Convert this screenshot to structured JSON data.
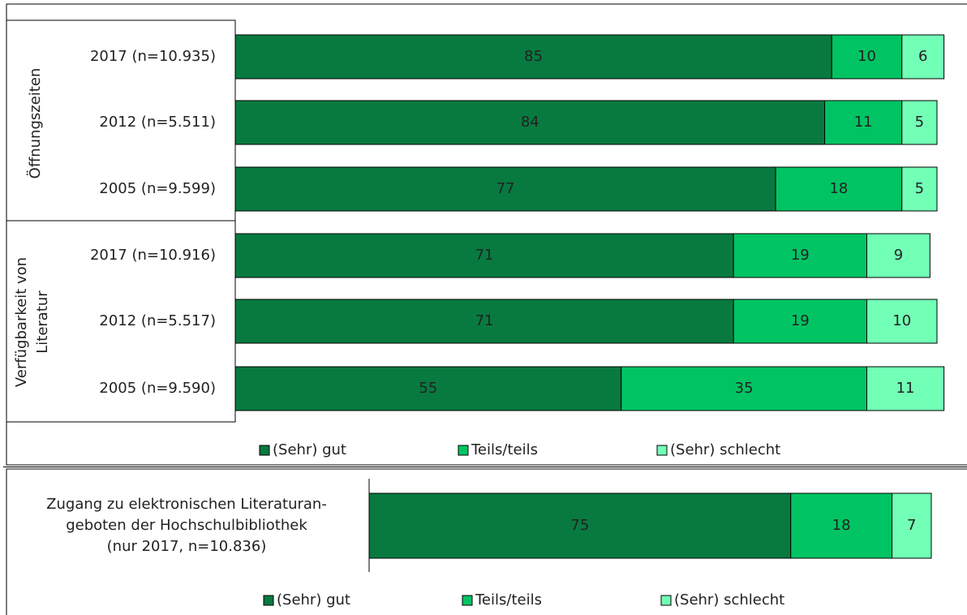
{
  "chart_data": [
    {
      "type": "bar",
      "orientation": "horizontal",
      "stacked": true,
      "xlim": [
        0,
        100
      ],
      "groups": [
        {
          "name": "Öffnungszeiten",
          "categories": [
            "2017 (n=10.935)",
            "2012 (n=5.511)",
            "2005 (n=9.599)"
          ]
        },
        {
          "name": "Verfügbarkeit von\nLiteratur",
          "categories": [
            "2017 (n=10.916)",
            "2012 (n=5.517)",
            "2005 (n=9.590)"
          ]
        }
      ],
      "series": [
        {
          "name": "(Sehr) gut",
          "color": "#087a40",
          "values": [
            85,
            84,
            77,
            71,
            71,
            55
          ]
        },
        {
          "name": "Teils/teils",
          "color": "#00c463",
          "values": [
            10,
            11,
            18,
            19,
            19,
            35
          ]
        },
        {
          "name": "(Sehr) schlecht",
          "color": "#72ffb6",
          "values": [
            6,
            5,
            5,
            9,
            10,
            11
          ]
        }
      ]
    },
    {
      "type": "bar",
      "orientation": "horizontal",
      "stacked": true,
      "xlim": [
        0,
        100
      ],
      "categories": [
        "Zugang zu elektronischen Literaturan-\ngeboten der Hochschulbibliothek\n(nur 2017, n=10.836)"
      ],
      "series": [
        {
          "name": "(Sehr) gut",
          "color": "#087a40",
          "values": [
            75
          ]
        },
        {
          "name": "Teils/teils",
          "color": "#00c463",
          "values": [
            18
          ]
        },
        {
          "name": "(Sehr) schlecht",
          "color": "#72ffb6",
          "values": [
            7
          ]
        }
      ]
    }
  ]
}
